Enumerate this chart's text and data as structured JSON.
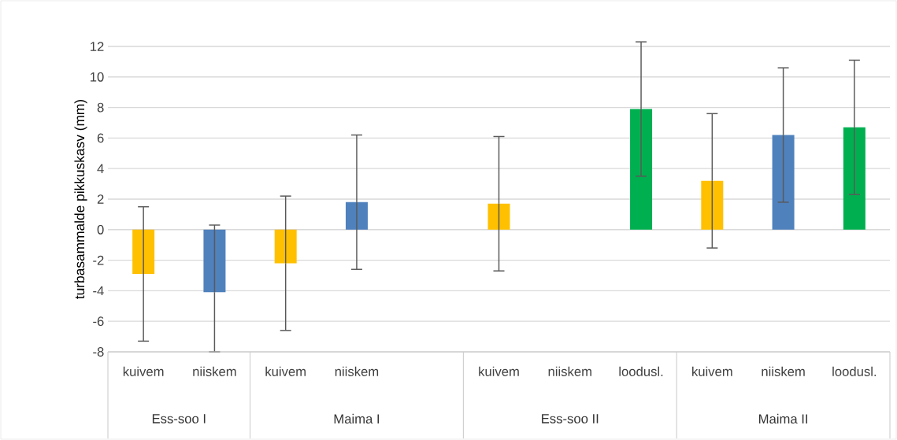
{
  "chart_data": {
    "type": "bar",
    "ylabel": "turbasammalde pikkuskasv (mm)",
    "categories": [
      "kuivem",
      "niiskem",
      "kuivem",
      "niiskem",
      null,
      "kuivem",
      "niiskem",
      "loodusl.",
      "kuivem",
      "niiskem",
      "loodusl."
    ],
    "values": [
      -2.9,
      -4.1,
      -2.2,
      1.8,
      null,
      1.7,
      null,
      7.9,
      3.2,
      6.2,
      6.7
    ],
    "colors": [
      "#ffc000",
      "#4f81bd",
      "#ffc000",
      "#4f81bd",
      null,
      "#ffc000",
      null,
      "#00b050",
      "#ffc000",
      "#4f81bd",
      "#00b050"
    ],
    "errors": [
      4.4,
      [
        -8,
        0.3
      ],
      4.4,
      4.4,
      null,
      4.4,
      null,
      4.4,
      4.4,
      4.4,
      4.4
    ],
    "ylim": [
      -8,
      12
    ],
    "yticks": [
      -8,
      -6,
      -4,
      -2,
      0,
      2,
      4,
      6,
      8,
      10,
      12
    ],
    "grid": "y",
    "annotations": [
      "Ess-soo I",
      "Maima I",
      "Ess-soo II",
      "Maima II"
    ]
  }
}
